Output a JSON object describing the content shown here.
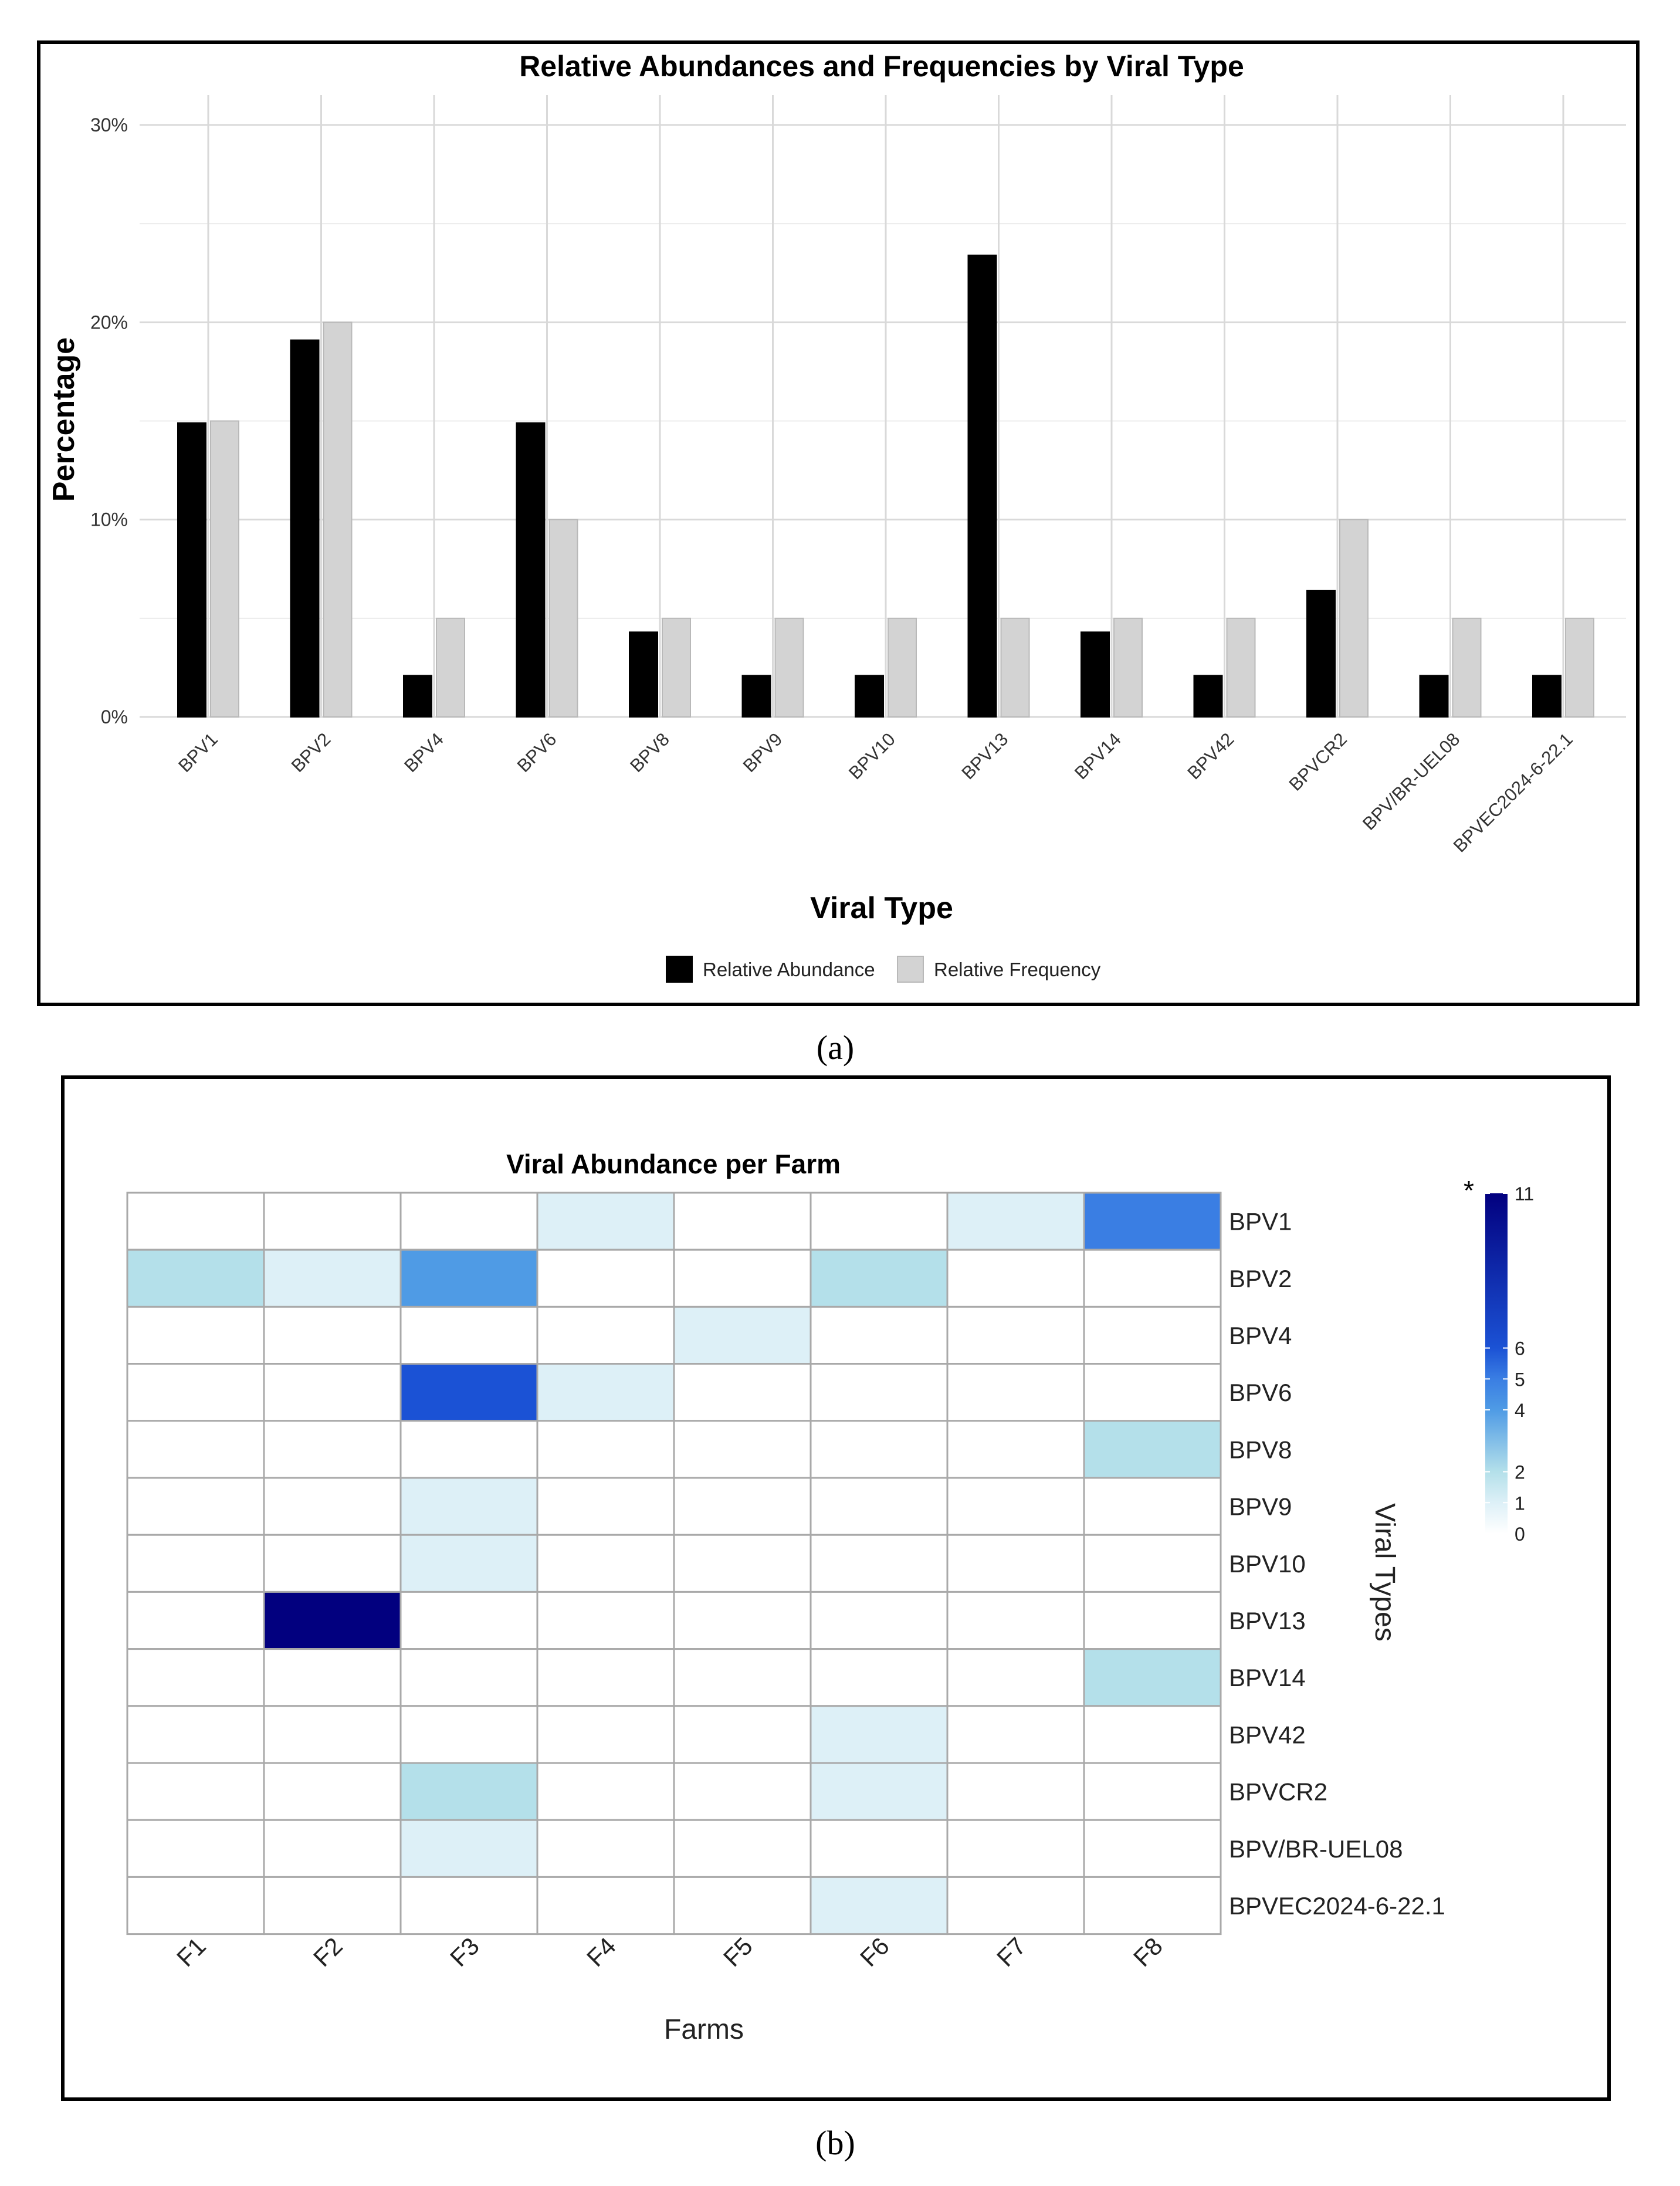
{
  "chart_data": [
    {
      "type": "bar",
      "panel_label": "(a)",
      "title": "Relative Abundances and Frequencies by Viral Type",
      "xlabel": "Viral Type",
      "ylabel": "Percentage",
      "ylim": [
        0,
        30
      ],
      "yticks": [
        0,
        10,
        20,
        30
      ],
      "ytick_labels": [
        "0%",
        "10%",
        "20%",
        "30%"
      ],
      "grid": true,
      "legend_position": "bottom",
      "categories": [
        "BPV1",
        "BPV2",
        "BPV4",
        "BPV6",
        "BPV8",
        "BPV9",
        "BPV10",
        "BPV13",
        "BPV14",
        "BPV42",
        "BPVCR2",
        "BPV/BR-UEL08",
        "BPVEC2024-6-22.1"
      ],
      "series": [
        {
          "name": "Relative Abundance",
          "color": "#000000",
          "values": [
            14.9,
            19.1,
            2.1,
            14.9,
            4.3,
            2.1,
            2.1,
            23.4,
            4.3,
            2.1,
            6.4,
            2.1,
            2.1
          ]
        },
        {
          "name": "Relative Frequency",
          "color": "#d3d3d3",
          "values": [
            15,
            20,
            5,
            10,
            5,
            5,
            5,
            5,
            5,
            5,
            10,
            5,
            5
          ]
        }
      ]
    },
    {
      "type": "heatmap",
      "panel_label": "(b)",
      "title": "Viral Abundance per Farm",
      "xlabel": "Farms",
      "ylabel": "Viral Types",
      "x": [
        "F1",
        "F2",
        "F3",
        "F4",
        "F5",
        "F6",
        "F7",
        "F8"
      ],
      "y": [
        "BPV1",
        "BPV2",
        "BPV4",
        "BPV6",
        "BPV8",
        "BPV9",
        "BPV10",
        "BPV13",
        "BPV14",
        "BPV42",
        "BPVCR2",
        "BPV/BR-UEL08",
        "BPVEC2024-6-22.1"
      ],
      "values": [
        [
          0,
          0,
          0,
          1,
          0,
          0,
          1,
          5
        ],
        [
          2,
          1,
          4,
          0,
          0,
          2,
          0,
          0
        ],
        [
          0,
          0,
          0,
          0,
          1,
          0,
          0,
          0
        ],
        [
          0,
          0,
          6,
          1,
          0,
          0,
          0,
          0
        ],
        [
          0,
          0,
          0,
          0,
          0,
          0,
          0,
          2
        ],
        [
          0,
          0,
          1,
          0,
          0,
          0,
          0,
          0
        ],
        [
          0,
          0,
          1,
          0,
          0,
          0,
          0,
          0
        ],
        [
          0,
          11,
          0,
          0,
          0,
          0,
          0,
          0
        ],
        [
          0,
          0,
          0,
          0,
          0,
          0,
          0,
          2
        ],
        [
          0,
          0,
          0,
          0,
          0,
          1,
          0,
          0
        ],
        [
          0,
          0,
          2,
          0,
          0,
          1,
          0,
          0
        ],
        [
          0,
          0,
          1,
          0,
          0,
          0,
          0,
          0
        ],
        [
          0,
          0,
          0,
          0,
          0,
          1,
          0,
          0
        ]
      ],
      "colorbar": {
        "ticks": [
          0,
          1,
          2,
          4,
          5,
          6,
          11
        ],
        "tick_labels": [
          "0",
          "1",
          "2",
          "4",
          "5",
          "6",
          "11"
        ],
        "marker": "*",
        "stops": [
          {
            "v": 0,
            "color": "#ffffff"
          },
          {
            "v": 1,
            "color": "#ddf0f7"
          },
          {
            "v": 2,
            "color": "#b4e0ea"
          },
          {
            "v": 4,
            "color": "#4f9be5"
          },
          {
            "v": 5,
            "color": "#3a7ee3"
          },
          {
            "v": 6,
            "color": "#1b52d5"
          },
          {
            "v": 11,
            "color": "#02007f"
          }
        ]
      }
    }
  ]
}
